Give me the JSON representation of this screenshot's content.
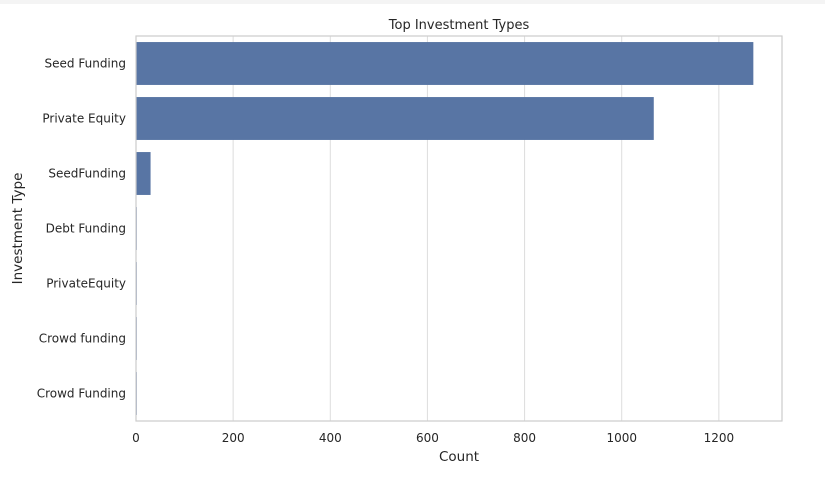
{
  "chart_data": {
    "type": "bar",
    "orientation": "horizontal",
    "title": "Top Investment Types",
    "xlabel": "Count",
    "ylabel": "Investment Type",
    "categories": [
      "Seed Funding",
      "Private Equity",
      "SeedFunding",
      "Debt Funding",
      "PrivateEquity",
      "Crowd funding",
      "Crowd Funding"
    ],
    "values": [
      1271,
      1066,
      30,
      1,
      1,
      1,
      1
    ],
    "xlim": [
      0,
      1330
    ],
    "xticks": [
      0,
      200,
      400,
      600,
      800,
      1000,
      1200
    ],
    "grid": "vertical",
    "colors": {
      "bar": "#5875a4",
      "grid": "#dddddd",
      "frame": "#cccccc",
      "text": "#262626"
    }
  }
}
